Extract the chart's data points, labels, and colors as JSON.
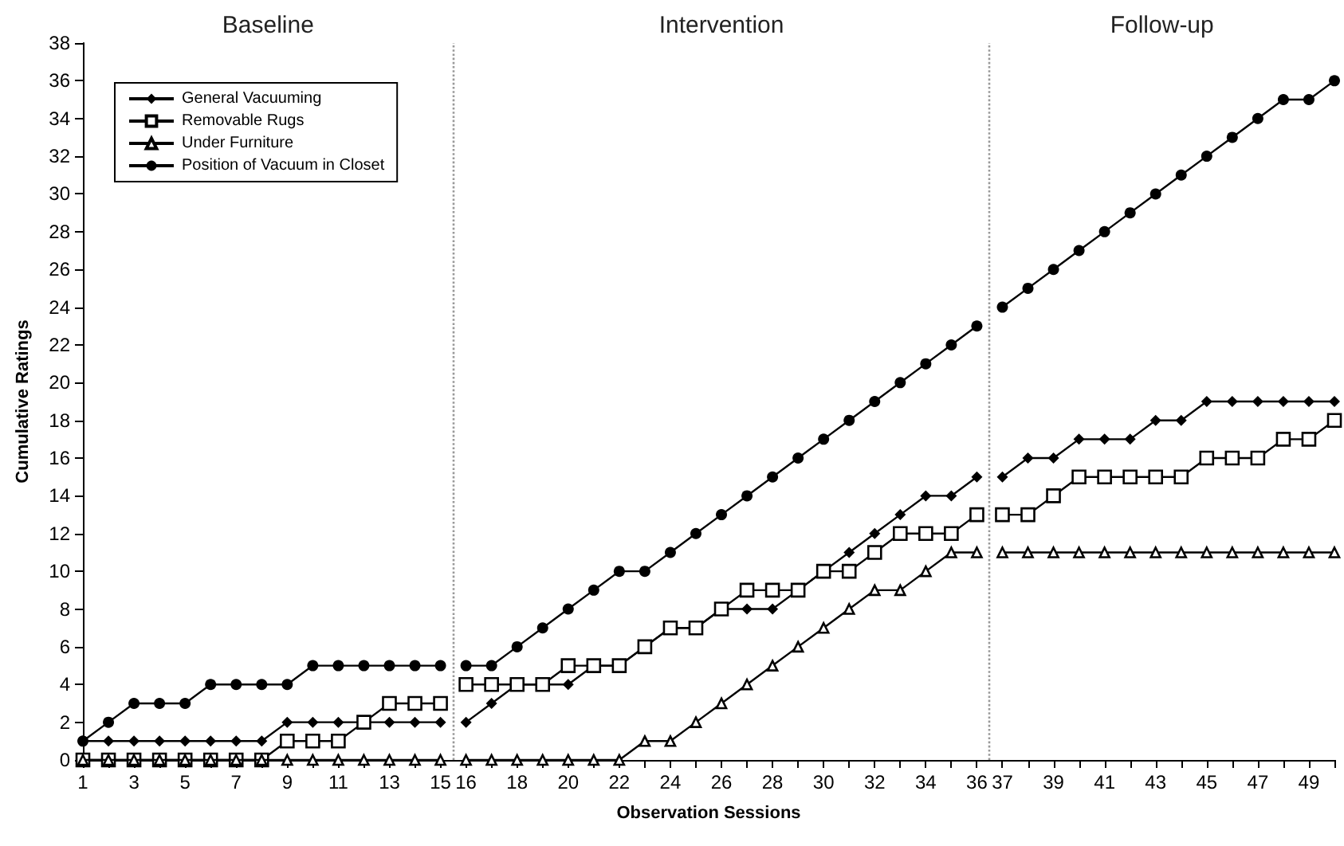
{
  "chart_data": {
    "type": "line",
    "xlabel": "Observation Sessions",
    "ylabel": "Cumulative Ratings",
    "annotations": [
      "Baseline",
      "Intervention",
      "Follow-up"
    ],
    "x": [
      1,
      2,
      3,
      4,
      5,
      6,
      7,
      8,
      9,
      10,
      11,
      12,
      13,
      14,
      15,
      15.5,
      16,
      17,
      18,
      19,
      20,
      21,
      22,
      23,
      24,
      25,
      26,
      27,
      28,
      29,
      30,
      31,
      32,
      33,
      34,
      35,
      36,
      36.5,
      37,
      38,
      39,
      40,
      41,
      42,
      43,
      44,
      45,
      46,
      47,
      48,
      49,
      50
    ],
    "series": [
      {
        "name": "General Vacuuming",
        "color": "#000000",
        "marker": "diamond",
        "values": [
          1,
          1,
          1,
          1,
          1,
          1,
          1,
          1,
          2,
          2,
          2,
          2,
          2,
          2,
          2,
          null,
          2,
          3,
          4,
          4,
          4,
          5,
          5,
          6,
          7,
          7,
          8,
          8,
          8,
          9,
          10,
          11,
          12,
          13,
          14,
          14,
          15,
          null,
          15,
          16,
          16,
          17,
          17,
          17,
          18,
          18,
          19,
          19,
          19,
          19,
          19,
          19
        ]
      },
      {
        "name": "Removable Rugs",
        "color": "#000000",
        "marker": "square",
        "values": [
          0,
          0,
          0,
          0,
          0,
          0,
          0,
          0,
          1,
          1,
          1,
          2,
          3,
          3,
          3,
          null,
          4,
          4,
          4,
          4,
          5,
          5,
          5,
          6,
          7,
          7,
          8,
          9,
          9,
          9,
          10,
          10,
          11,
          12,
          12,
          12,
          13,
          null,
          13,
          13,
          14,
          15,
          15,
          15,
          15,
          15,
          16,
          16,
          16,
          17,
          17,
          18
        ]
      },
      {
        "name": "Under Furniture",
        "color": "#000000",
        "marker": "triangle",
        "values": [
          0,
          0,
          0,
          0,
          0,
          0,
          0,
          0,
          0,
          0,
          0,
          0,
          0,
          0,
          0,
          null,
          0,
          0,
          0,
          0,
          0,
          0,
          0,
          1,
          1,
          2,
          3,
          4,
          5,
          6,
          7,
          8,
          9,
          9,
          10,
          11,
          11,
          null,
          11,
          11,
          11,
          11,
          11,
          11,
          11,
          11,
          11,
          11,
          11,
          11,
          11,
          11
        ]
      },
      {
        "name": "Position of Vacuum in Closet",
        "color": "#000000",
        "marker": "circle",
        "values": [
          1,
          2,
          3,
          3,
          3,
          4,
          4,
          4,
          4,
          5,
          5,
          5,
          5,
          5,
          5,
          null,
          5,
          5,
          6,
          7,
          8,
          9,
          10,
          10,
          11,
          12,
          13,
          14,
          15,
          16,
          17,
          18,
          19,
          20,
          21,
          22,
          23,
          null,
          24,
          25,
          26,
          27,
          28,
          29,
          30,
          31,
          32,
          33,
          34,
          35,
          35,
          36
        ]
      }
    ],
    "xlim": [
      1,
      50
    ],
    "xticks": [
      1,
      {
        "value": 2,
        "label": null
      },
      3,
      {
        "value": 4,
        "label": null
      },
      5,
      {
        "value": 6,
        "label": null
      },
      7,
      {
        "value": 8,
        "label": null
      },
      9,
      {
        "value": 10,
        "label": null
      },
      11,
      {
        "value": 12,
        "label": null
      },
      13,
      {
        "value": 14,
        "label": null
      },
      15,
      16,
      {
        "value": 17,
        "label": null
      },
      18,
      {
        "value": 19,
        "label": null
      },
      20,
      {
        "value": 21,
        "label": null
      },
      22,
      {
        "value": 23,
        "label": null
      },
      24,
      {
        "value": 25,
        "label": null
      },
      26,
      {
        "value": 27,
        "label": null
      },
      28,
      {
        "value": 29,
        "label": null
      },
      30,
      {
        "value": 31,
        "label": null
      },
      32,
      {
        "value": 33,
        "label": null
      },
      34,
      {
        "value": 35,
        "label": null
      },
      36,
      37,
      {
        "value": 38,
        "label": null
      },
      39,
      {
        "value": 40,
        "label": null
      },
      41,
      {
        "value": 42,
        "label": null
      },
      43,
      {
        "value": 44,
        "label": null
      },
      45,
      {
        "value": 46,
        "label": null
      },
      47,
      {
        "value": 48,
        "label": null
      },
      49,
      {
        "value": 50,
        "label": null
      }
    ],
    "ylim": [
      0,
      38
    ],
    "yticks": [
      0,
      2,
      4,
      6,
      8,
      10,
      12,
      14,
      16,
      18,
      20,
      22,
      24,
      26,
      28,
      30,
      32,
      34,
      36,
      38
    ],
    "ref_lines": [
      {
        "axis": "x",
        "value": 15.5,
        "color": "#999999",
        "line_style": "dotted"
      },
      {
        "axis": "x",
        "value": 36.5,
        "color": "#999999",
        "line_style": "dotted"
      }
    ],
    "grid": false,
    "legend": "top left"
  }
}
